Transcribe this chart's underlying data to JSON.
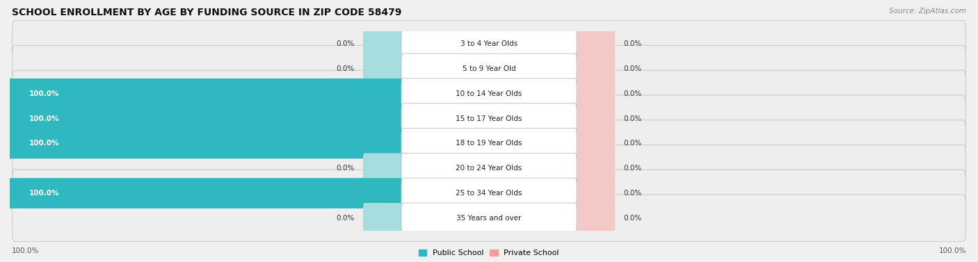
{
  "title": "SCHOOL ENROLLMENT BY AGE BY FUNDING SOURCE IN ZIP CODE 58479",
  "source": "Source: ZipAtlas.com",
  "categories": [
    "3 to 4 Year Olds",
    "5 to 9 Year Old",
    "10 to 14 Year Olds",
    "15 to 17 Year Olds",
    "18 to 19 Year Olds",
    "20 to 24 Year Olds",
    "25 to 34 Year Olds",
    "35 Years and over"
  ],
  "public_values": [
    0.0,
    0.0,
    100.0,
    100.0,
    100.0,
    0.0,
    100.0,
    0.0
  ],
  "private_values": [
    0.0,
    0.0,
    0.0,
    0.0,
    0.0,
    0.0,
    0.0,
    0.0
  ],
  "public_color": "#30b8c0",
  "private_color": "#f0a0a0",
  "public_color_light": "#a8dde0",
  "private_color_light": "#f5c8c8",
  "row_bg_color": "#eeeeee",
  "row_inner_color": "#f7f7f7",
  "title_fontsize": 10,
  "source_fontsize": 7.5,
  "label_fontsize": 7.5,
  "value_fontsize": 7.5,
  "legend_fontsize": 8,
  "axis_label_left": "100.0%",
  "axis_label_right": "100.0%"
}
